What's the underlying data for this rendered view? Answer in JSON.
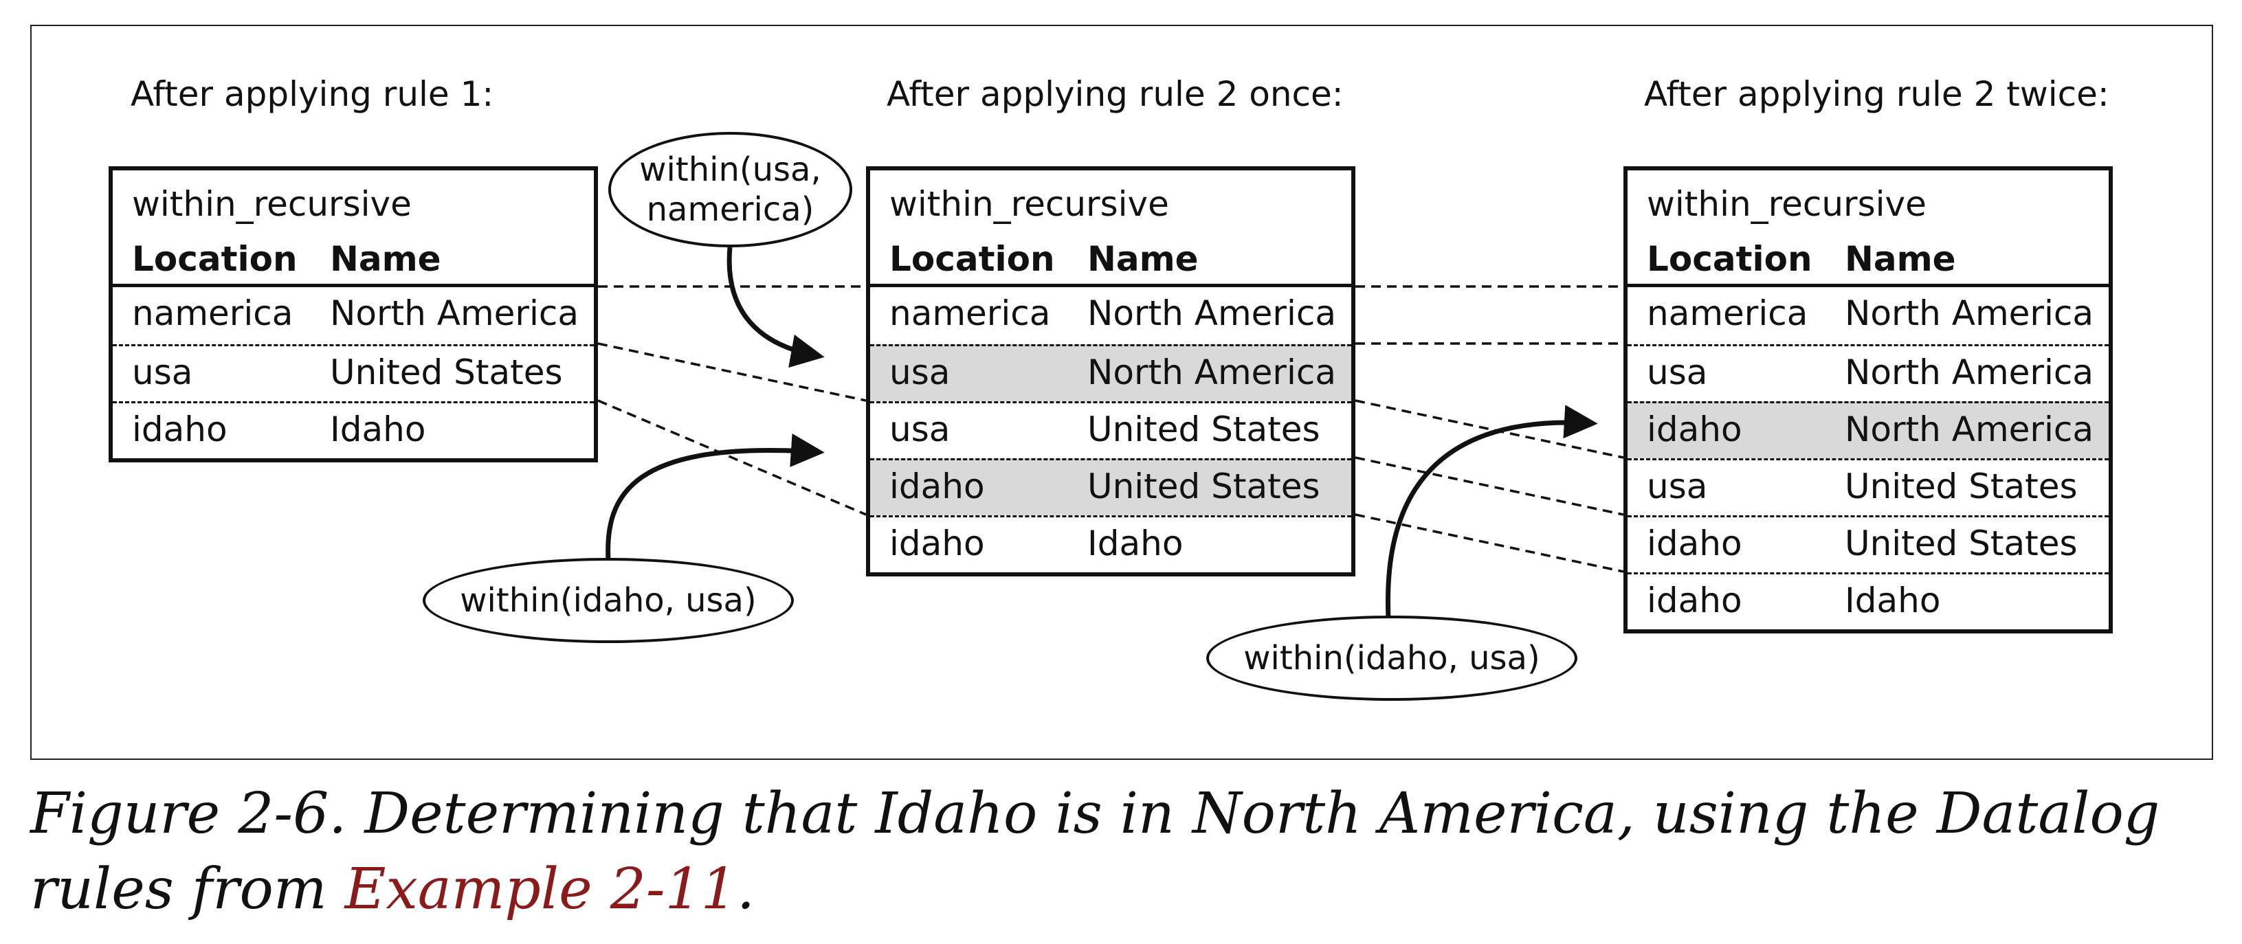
{
  "steps": [
    {
      "title": "After applying rule 1:",
      "table": {
        "name": "within_recursive",
        "columns": [
          "Location",
          "Name"
        ],
        "rows": [
          {
            "location": "namerica",
            "name": "North America",
            "highlight": false
          },
          {
            "location": "usa",
            "name": "United States",
            "highlight": false
          },
          {
            "location": "idaho",
            "name": "Idaho",
            "highlight": false
          }
        ]
      }
    },
    {
      "title": "After applying rule 2 once:",
      "table": {
        "name": "within_recursive",
        "columns": [
          "Location",
          "Name"
        ],
        "rows": [
          {
            "location": "namerica",
            "name": "North America",
            "highlight": false
          },
          {
            "location": "usa",
            "name": "North America",
            "highlight": true
          },
          {
            "location": "usa",
            "name": "United States",
            "highlight": false
          },
          {
            "location": "idaho",
            "name": "United States",
            "highlight": true
          },
          {
            "location": "idaho",
            "name": "Idaho",
            "highlight": false
          }
        ]
      }
    },
    {
      "title": "After applying rule 2 twice:",
      "table": {
        "name": "within_recursive",
        "columns": [
          "Location",
          "Name"
        ],
        "rows": [
          {
            "location": "namerica",
            "name": "North America",
            "highlight": false
          },
          {
            "location": "usa",
            "name": "North America",
            "highlight": false
          },
          {
            "location": "idaho",
            "name": "North America",
            "highlight": true
          },
          {
            "location": "usa",
            "name": "United States",
            "highlight": false
          },
          {
            "location": "idaho",
            "name": "United States",
            "highlight": false
          },
          {
            "location": "idaho",
            "name": "Idaho",
            "highlight": false
          }
        ]
      }
    }
  ],
  "bubbles": {
    "usa_namerica": "within(usa, namerica)",
    "idaho_usa_1": "within(idaho, usa)",
    "idaho_usa_2": "within(idaho, usa)"
  },
  "caption": {
    "text": "Figure 2-6. Determining that Idaho is in North America, using the Datalog rules from ",
    "ref": "Example 2-11",
    "end": "."
  },
  "colors": {
    "highlight": "#d9d9d9",
    "caption_ref": "#8b1a1a"
  }
}
